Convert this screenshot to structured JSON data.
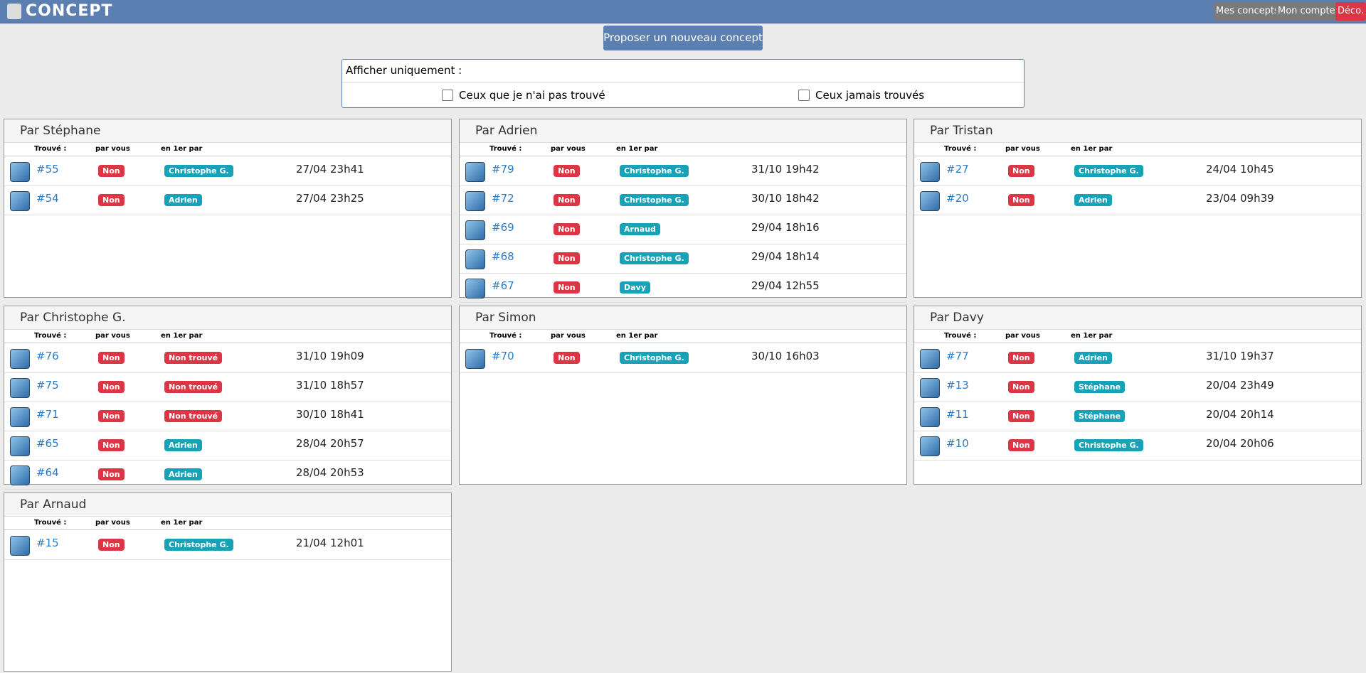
{
  "header": {
    "brand": "CONCEPT",
    "buttons": [
      "Mes concepts",
      "Mon compte",
      "Déco."
    ]
  },
  "new_button": "Proposer un nouveau concept",
  "filter": {
    "title": "Afficher uniquement :",
    "options": [
      "Ceux que je n'ai pas trouvé",
      "Ceux jamais trouvés"
    ]
  },
  "table_headers": [
    "Trouvé :",
    "par vous",
    "en 1er par"
  ],
  "panels": [
    {
      "title": "Par Stéphane",
      "rows": [
        {
          "id": "#55",
          "vous": "Non",
          "premier": "Christophe G.",
          "premier_color": "#17a2b8",
          "date": "27/04 23h41"
        },
        {
          "id": "#54",
          "vous": "Non",
          "premier": "Adrien",
          "premier_color": "#17a2b8",
          "date": "27/04 23h25"
        }
      ]
    },
    {
      "title": "Par Adrien",
      "rows": [
        {
          "id": "#79",
          "vous": "Non",
          "premier": "Christophe G.",
          "premier_color": "#17a2b8",
          "date": "31/10 19h42"
        },
        {
          "id": "#72",
          "vous": "Non",
          "premier": "Christophe G.",
          "premier_color": "#17a2b8",
          "date": "30/10 18h42"
        },
        {
          "id": "#69",
          "vous": "Non",
          "premier": "Arnaud",
          "premier_color": "#17a2b8",
          "date": "29/04 18h16"
        },
        {
          "id": "#68",
          "vous": "Non",
          "premier": "Christophe G.",
          "premier_color": "#17a2b8",
          "date": "29/04 18h14"
        },
        {
          "id": "#67",
          "vous": "Non",
          "premier": "Davy",
          "premier_color": "#17a2b8",
          "date": "29/04 12h55"
        }
      ]
    },
    {
      "title": "Par Tristan",
      "rows": [
        {
          "id": "#27",
          "vous": "Non",
          "premier": "Christophe G.",
          "premier_color": "#17a2b8",
          "date": "24/04 10h45"
        },
        {
          "id": "#20",
          "vous": "Non",
          "premier": "Adrien",
          "premier_color": "#17a2b8",
          "date": "23/04 09h39"
        }
      ]
    },
    {
      "title": "Par Christophe G.",
      "rows": [
        {
          "id": "#76",
          "vous": "Non",
          "premier": "Non trouvé",
          "premier_color": "#dc3545",
          "date": "31/10 19h09"
        },
        {
          "id": "#75",
          "vous": "Non",
          "premier": "Non trouvé",
          "premier_color": "#dc3545",
          "date": "31/10 18h57"
        },
        {
          "id": "#71",
          "vous": "Non",
          "premier": "Non trouvé",
          "premier_color": "#dc3545",
          "date": "30/10 18h41"
        },
        {
          "id": "#65",
          "vous": "Non",
          "premier": "Adrien",
          "premier_color": "#17a2b8",
          "date": "28/04 20h57"
        },
        {
          "id": "#64",
          "vous": "Non",
          "premier": "Adrien",
          "premier_color": "#17a2b8",
          "date": "28/04 20h53"
        }
      ]
    },
    {
      "title": "Par Simon",
      "rows": [
        {
          "id": "#70",
          "vous": "Non",
          "premier": "Christophe G.",
          "premier_color": "#17a2b8",
          "date": "30/10 16h03"
        }
      ]
    },
    {
      "title": "Par Davy",
      "rows": [
        {
          "id": "#77",
          "vous": "Non",
          "premier": "Adrien",
          "premier_color": "#17a2b8",
          "date": "31/10 19h37"
        },
        {
          "id": "#13",
          "vous": "Non",
          "premier": "Stéphane",
          "premier_color": "#17a2b8",
          "date": "20/04 23h49"
        },
        {
          "id": "#11",
          "vous": "Non",
          "premier": "Stéphane",
          "premier_color": "#17a2b8",
          "date": "20/04 20h14"
        },
        {
          "id": "#10",
          "vous": "Non",
          "premier": "Christophe G.",
          "premier_color": "#17a2b8",
          "date": "20/04 20h06"
        }
      ]
    },
    {
      "title": "Par Arnaud",
      "rows": [
        {
          "id": "#15",
          "vous": "Non",
          "premier": "Christophe G.",
          "premier_color": "#17a2b8",
          "date": "21/04 12h01"
        }
      ]
    }
  ]
}
